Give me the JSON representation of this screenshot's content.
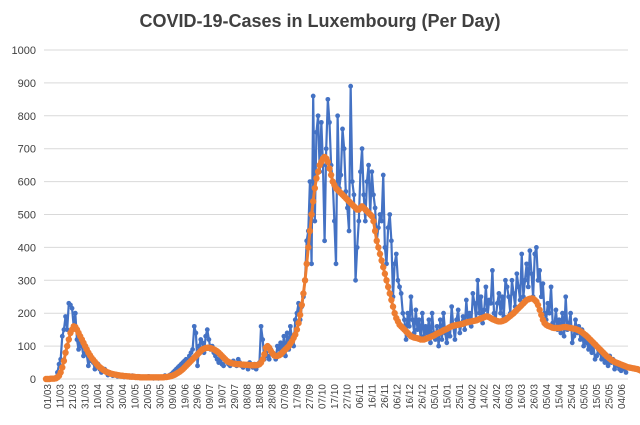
{
  "chart_data": {
    "type": "line",
    "title": "COVID-19-Cases in Luxembourg (Per Day)",
    "xlabel": "",
    "ylabel": "",
    "ylim": [
      0,
      1000
    ],
    "yticks": [
      0,
      100,
      200,
      300,
      400,
      500,
      600,
      700,
      800,
      900,
      1000
    ],
    "grid": "horizontal",
    "legend": "none",
    "colors": {
      "daily": "#4472C4",
      "average": "#ED7D31",
      "grid": "#D9D9D9"
    },
    "x_tick_labels": [
      "01/03",
      "11/03",
      "21/03",
      "31/03",
      "10/04",
      "20/04",
      "30/04",
      "10/05",
      "20/05",
      "30/05",
      "09/06",
      "19/06",
      "29/06",
      "09/07",
      "19/07",
      "29/07",
      "08/08",
      "18/08",
      "28/08",
      "07/09",
      "17/09",
      "27/09",
      "07/10",
      "17/10",
      "27/10",
      "06/11",
      "16/11",
      "26/11",
      "06/12",
      "16/12",
      "26/12",
      "05/01",
      "15/01",
      "25/01",
      "04/02",
      "14/02",
      "24/02",
      "06/03",
      "16/03",
      "26/03",
      "05/04",
      "15/04",
      "25/04",
      "05/05",
      "15/05",
      "25/05",
      "04/06"
    ],
    "series": [
      {
        "key": "daily",
        "values": [
          0,
          0,
          0,
          2,
          1,
          0,
          5,
          20,
          45,
          60,
          130,
          150,
          190,
          150,
          230,
          225,
          215,
          160,
          200,
          120,
          90,
          110,
          100,
          70,
          80,
          75,
          40,
          60,
          55,
          50,
          30,
          40,
          45,
          30,
          20,
          25,
          30,
          20,
          12,
          20,
          18,
          10,
          15,
          12,
          8,
          10,
          12,
          8,
          6,
          10,
          8,
          5,
          6,
          10,
          7,
          5,
          4,
          6,
          5,
          3,
          5,
          4,
          3,
          8,
          5,
          4,
          2,
          5,
          3,
          2,
          6,
          5,
          4,
          10,
          8,
          6,
          12,
          15,
          20,
          25,
          30,
          35,
          40,
          45,
          50,
          55,
          60,
          45,
          70,
          80,
          90,
          160,
          140,
          40,
          100,
          120,
          110,
          80,
          130,
          150,
          120,
          90,
          100,
          80,
          70,
          60,
          50,
          70,
          45,
          40,
          60,
          55,
          45,
          40,
          50,
          55,
          45,
          40,
          60,
          50,
          40,
          35,
          45,
          40,
          30,
          50,
          40,
          35,
          45,
          30,
          40,
          50,
          160,
          120,
          60,
          80,
          70,
          60,
          90,
          80,
          70,
          60,
          100,
          90,
          110,
          80,
          130,
          70,
          140,
          90,
          160,
          120,
          100,
          180,
          200,
          230,
          180,
          220,
          250,
          300,
          420,
          450,
          600,
          350,
          860,
          480,
          750,
          800,
          630,
          780,
          650,
          420,
          700,
          850,
          780,
          650,
          600,
          480,
          350,
          800,
          580,
          620,
          760,
          700,
          570,
          520,
          450,
          890,
          600,
          560,
          300,
          400,
          480,
          630,
          700,
          560,
          480,
          600,
          650,
          500,
          630,
          560,
          520,
          420,
          460,
          500,
          480,
          620,
          400,
          350,
          460,
          500,
          420,
          250,
          350,
          380,
          300,
          280,
          260,
          200,
          180,
          120,
          200,
          160,
          250,
          180,
          140,
          210,
          150,
          180,
          120,
          200,
          130,
          160,
          140,
          180,
          110,
          200,
          140,
          120,
          160,
          100,
          180,
          120,
          200,
          140,
          110,
          150,
          130,
          220,
          160,
          120,
          180,
          210,
          140,
          170,
          190,
          150,
          240,
          170,
          200,
          160,
          260,
          230,
          180,
          300,
          200,
          250,
          170,
          210,
          280,
          190,
          240,
          230,
          330,
          200,
          180,
          230,
          260,
          200,
          250,
          190,
          300,
          280,
          250,
          200,
          300,
          260,
          220,
          320,
          280,
          240,
          380,
          250,
          300,
          350,
          280,
          390,
          320,
          250,
          380,
          400,
          300,
          330,
          250,
          290,
          200,
          180,
          230,
          200,
          280,
          170,
          160,
          210,
          150,
          180,
          140,
          200,
          130,
          250,
          150,
          170,
          200,
          110,
          130,
          180,
          140,
          160,
          120,
          150,
          100,
          130,
          110,
          90,
          120,
          80,
          100,
          60,
          70,
          90,
          80,
          60,
          70,
          50,
          60,
          40,
          70,
          50,
          60,
          30,
          50,
          40,
          30,
          25,
          40,
          30,
          20
        ]
      },
      {
        "key": "average",
        "values": [
          0,
          0,
          0,
          1,
          1,
          1,
          2,
          5,
          10,
          20,
          35,
          55,
          80,
          100,
          120,
          140,
          150,
          160,
          158,
          150,
          140,
          130,
          120,
          110,
          100,
          90,
          80,
          72,
          64,
          58,
          52,
          46,
          40,
          36,
          32,
          28,
          25,
          22,
          20,
          18,
          16,
          15,
          14,
          13,
          12,
          11,
          10,
          10,
          9,
          9,
          8,
          8,
          7,
          7,
          7,
          6,
          6,
          6,
          5,
          5,
          5,
          5,
          5,
          5,
          5,
          5,
          5,
          5,
          5,
          5,
          5,
          5,
          5,
          6,
          6,
          7,
          8,
          9,
          11,
          13,
          16,
          19,
          22,
          26,
          30,
          35,
          40,
          45,
          50,
          55,
          60,
          65,
          70,
          75,
          80,
          85,
          90,
          92,
          94,
          95,
          95,
          94,
          92,
          90,
          87,
          84,
          80,
          75,
          70,
          65,
          60,
          55,
          52,
          50,
          48,
          47,
          46,
          45,
          45,
          45,
          44,
          44,
          43,
          43,
          43,
          42,
          42,
          42,
          42,
          42,
          43,
          45,
          50,
          60,
          75,
          95,
          100,
          95,
          85,
          78,
          72,
          70,
          70,
          72,
          75,
          80,
          85,
          90,
          95,
          100,
          108,
          115,
          125,
          135,
          150,
          170,
          195,
          225,
          260,
          300,
          350,
          400,
          450,
          500,
          540,
          580,
          610,
          630,
          650,
          660,
          670,
          675,
          670,
          660,
          640,
          620,
          600,
          590,
          580,
          575,
          570,
          565,
          560,
          555,
          550,
          545,
          540,
          535,
          530,
          525,
          520,
          515,
          515,
          520,
          525,
          520,
          515,
          510,
          505,
          500,
          495,
          480,
          450,
          420,
          400,
          380,
          360,
          340,
          320,
          300,
          280,
          260,
          240,
          220,
          200,
          185,
          175,
          165,
          160,
          155,
          150,
          145,
          140,
          135,
          130,
          128,
          126,
          125,
          124,
          122,
          120,
          120,
          120,
          122,
          124,
          126,
          128,
          130,
          132,
          135,
          138,
          140,
          142,
          145,
          148,
          150,
          152,
          155,
          158,
          160,
          162,
          163,
          164,
          165,
          166,
          167,
          168,
          170,
          172,
          173,
          174,
          175,
          176,
          177,
          178,
          180,
          182,
          184,
          186,
          188,
          190,
          190,
          188,
          185,
          182,
          180,
          178,
          176,
          175,
          175,
          176,
          178,
          180,
          184,
          188,
          192,
          196,
          200,
          205,
          210,
          215,
          220,
          225,
          230,
          235,
          240,
          242,
          244,
          245,
          244,
          240,
          235,
          225,
          210,
          195,
          180,
          170,
          165,
          162,
          160,
          158,
          156,
          155,
          155,
          155,
          155,
          156,
          157,
          158,
          158,
          157,
          156,
          155,
          154,
          153,
          152,
          150,
          148,
          145,
          142,
          138,
          134,
          130,
          125,
          120,
          115,
          110,
          105,
          100,
          95,
          90,
          85,
          80,
          75,
          70,
          66,
          62,
          58,
          55,
          52,
          50,
          48,
          46,
          44,
          42,
          40,
          38,
          36,
          35,
          34,
          33,
          32,
          31,
          30,
          28,
          26,
          24,
          22
        ]
      }
    ]
  }
}
